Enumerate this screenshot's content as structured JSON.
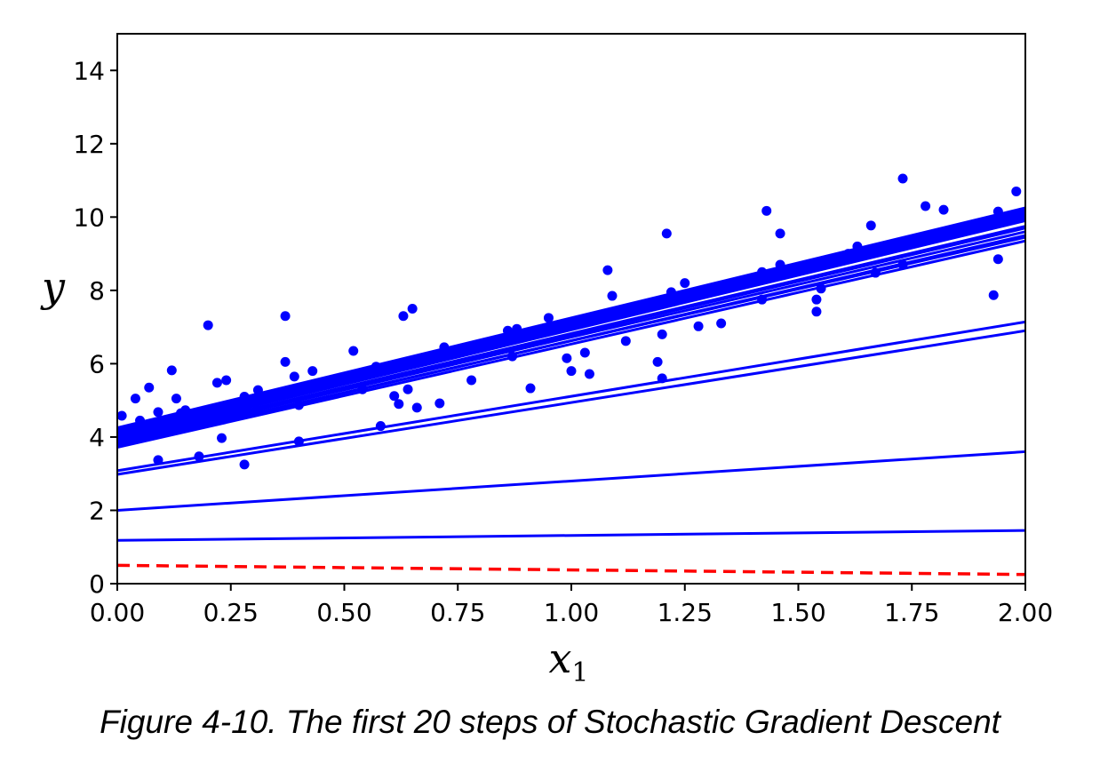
{
  "caption": "Figure 4-10. The first 20 steps of Stochastic Gradient Descent",
  "chart_data": {
    "type": "line",
    "title": "",
    "xlabel": "x",
    "xlabel_subscript": "1",
    "ylabel": "y",
    "xlim": [
      0,
      2
    ],
    "ylim": [
      0,
      15
    ],
    "xticks": [
      "0.00",
      "0.25",
      "0.50",
      "0.75",
      "1.00",
      "1.25",
      "1.50",
      "1.75",
      "2.00"
    ],
    "yticks": [
      "0",
      "2",
      "4",
      "6",
      "8",
      "10",
      "12",
      "14"
    ],
    "grid": false,
    "colors": {
      "points": "#0000ff",
      "lines": "#0000ff",
      "initial": "#ff0000",
      "frame": "#000000"
    },
    "initial_line": {
      "style": "dashed",
      "color": "#ff0000",
      "x": [
        0,
        2
      ],
      "y": [
        0.5,
        0.25
      ]
    },
    "step_lines": [
      {
        "x": [
          0,
          2
        ],
        "y": [
          1.18,
          1.45
        ]
      },
      {
        "x": [
          0,
          2
        ],
        "y": [
          2.0,
          3.6
        ]
      },
      {
        "x": [
          0,
          2
        ],
        "y": [
          2.98,
          6.9
        ]
      },
      {
        "x": [
          0,
          2
        ],
        "y": [
          3.08,
          7.14
        ]
      },
      {
        "x": [
          0,
          2
        ],
        "y": [
          3.72,
          9.35
        ]
      },
      {
        "x": [
          0,
          2
        ],
        "y": [
          3.8,
          9.45
        ]
      },
      {
        "x": [
          0,
          2
        ],
        "y": [
          3.85,
          9.6
        ]
      },
      {
        "x": [
          0,
          2
        ],
        "y": [
          3.9,
          9.75
        ]
      },
      {
        "x": [
          0,
          2
        ],
        "y": [
          3.95,
          9.9
        ]
      },
      {
        "x": [
          0,
          2
        ],
        "y": [
          4.0,
          10.0
        ]
      },
      {
        "x": [
          0,
          2
        ],
        "y": [
          4.05,
          10.05
        ]
      },
      {
        "x": [
          0,
          2
        ],
        "y": [
          4.1,
          10.1
        ]
      },
      {
        "x": [
          0,
          2
        ],
        "y": [
          4.15,
          10.15
        ]
      },
      {
        "x": [
          0,
          2
        ],
        "y": [
          4.2,
          10.2
        ]
      },
      {
        "x": [
          0,
          2
        ],
        "y": [
          4.25,
          10.25
        ]
      },
      {
        "x": [
          0,
          2
        ],
        "y": [
          3.88,
          9.7
        ]
      },
      {
        "x": [
          0,
          2
        ],
        "y": [
          3.98,
          9.95
        ]
      },
      {
        "x": [
          0,
          2
        ],
        "y": [
          4.08,
          10.12
        ]
      },
      {
        "x": [
          0,
          2
        ],
        "y": [
          3.76,
          9.5
        ]
      },
      {
        "x": [
          0,
          2
        ],
        "y": [
          4.18,
          10.22
        ]
      }
    ],
    "points": {
      "x": [
        0.01,
        0.04,
        0.05,
        0.07,
        0.09,
        0.09,
        0.12,
        0.13,
        0.14,
        0.15,
        0.18,
        0.2,
        0.22,
        0.23,
        0.24,
        0.25,
        0.28,
        0.28,
        0.31,
        0.31,
        0.36,
        0.37,
        0.37,
        0.39,
        0.4,
        0.4,
        0.43,
        0.52,
        0.54,
        0.57,
        0.58,
        0.61,
        0.62,
        0.63,
        0.64,
        0.65,
        0.66,
        0.71,
        0.72,
        0.78,
        0.86,
        0.87,
        0.88,
        0.91,
        0.95,
        0.99,
        1.0,
        1.03,
        1.04,
        1.06,
        1.08,
        1.09,
        1.12,
        1.19,
        1.2,
        1.2,
        1.21,
        1.22,
        1.25,
        1.28,
        1.33,
        1.42,
        1.42,
        1.43,
        1.46,
        1.46,
        1.54,
        1.54,
        1.55,
        1.61,
        1.63,
        1.66,
        1.67,
        1.73,
        1.73,
        1.78,
        1.82,
        1.93,
        1.94,
        1.94,
        1.98
      ],
      "y": [
        4.58,
        5.05,
        4.45,
        5.35,
        4.68,
        3.37,
        5.82,
        5.05,
        4.65,
        4.73,
        3.47,
        7.05,
        5.48,
        3.97,
        5.55,
        4.7,
        3.25,
        5.1,
        5.28,
        4.72,
        5.15,
        7.3,
        6.05,
        5.65,
        3.88,
        4.87,
        5.8,
        6.35,
        5.3,
        5.92,
        4.3,
        5.12,
        4.9,
        7.3,
        5.3,
        7.5,
        4.8,
        4.92,
        6.45,
        5.55,
        6.9,
        6.2,
        6.95,
        5.33,
        7.25,
        6.15,
        5.8,
        6.3,
        5.72,
        7.3,
        8.55,
        7.85,
        6.62,
        6.05,
        5.6,
        6.8,
        9.55,
        7.95,
        8.2,
        7.02,
        7.1,
        7.75,
        8.5,
        10.17,
        8.7,
        9.55,
        7.75,
        7.42,
        8.05,
        9.0,
        9.2,
        9.77,
        8.48,
        11.05,
        8.7,
        10.3,
        10.2,
        7.87,
        10.15,
        8.85,
        10.7
      ]
    }
  }
}
